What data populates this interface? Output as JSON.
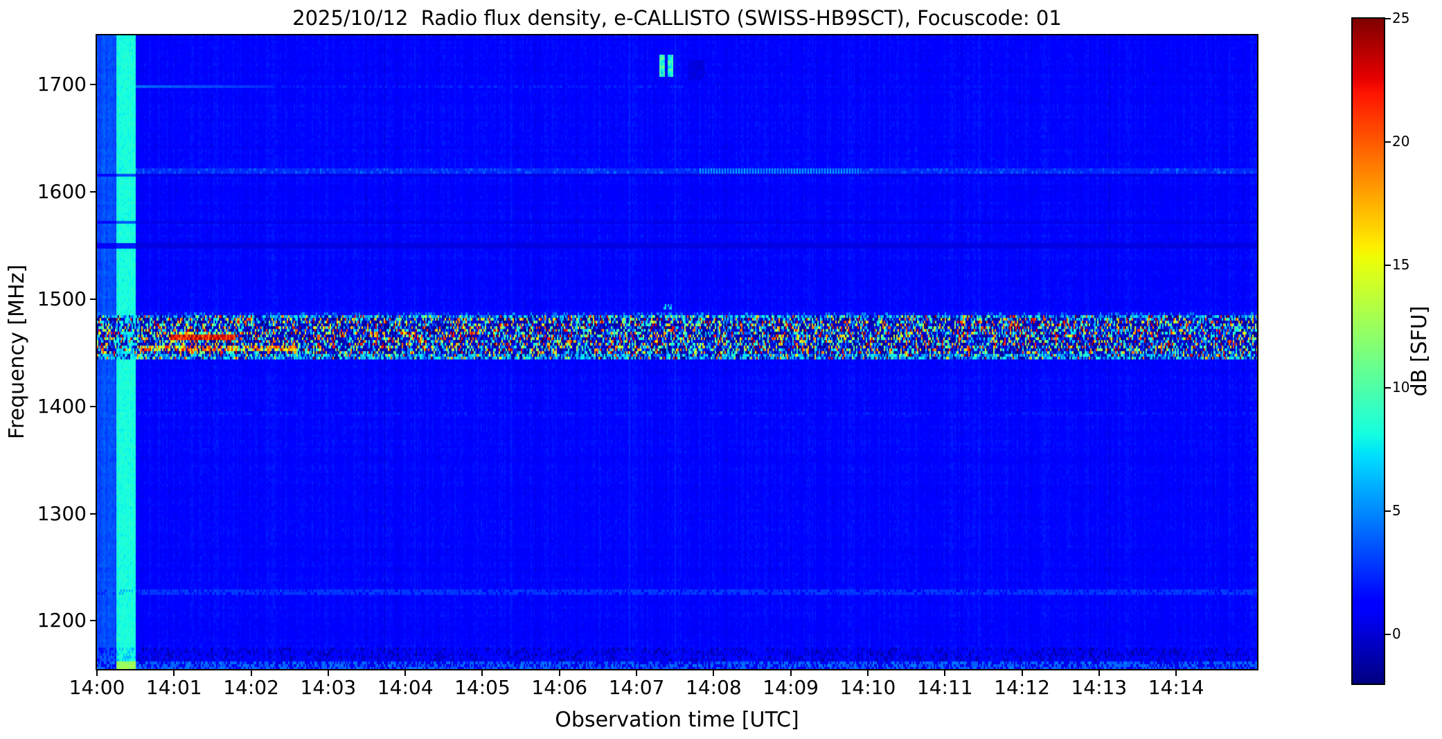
{
  "title": "2025/10/12  Radio flux density, e-CALLISTO (SWISS-HB9SCT), Focuscode: 01",
  "axes": {
    "xlabel": "Observation time [UTC]",
    "ylabel": "Frequency [MHz]",
    "x_ticks": [
      "14:00",
      "14:01",
      "14:02",
      "14:03",
      "14:04",
      "14:05",
      "14:06",
      "14:07",
      "14:08",
      "14:09",
      "14:10",
      "14:11",
      "14:12",
      "14:13",
      "14:14"
    ],
    "y_ticks": [
      1700,
      1600,
      1500,
      1400,
      1300,
      1200
    ]
  },
  "colorbar": {
    "label": "dB [SFU]",
    "ticks": [
      25,
      20,
      15,
      10,
      5,
      0
    ],
    "vmin": -2,
    "vmax": 25,
    "colormap": "jet"
  },
  "chart_data": {
    "type": "heatmap",
    "title": "2025/10/12  Radio flux density, e-CALLISTO (SWISS-HB9SCT), Focuscode: 01",
    "xlabel": "Observation time [UTC]",
    "ylabel": "Frequency [MHz]",
    "value_label": "dB [SFU]",
    "x_start_label": "14:00",
    "x_minutes_range": [
      0,
      15.05
    ],
    "freq_mhz_range": [
      1155,
      1746
    ],
    "value_range_db": [
      -2,
      25
    ],
    "colormap": "jet",
    "background_level_db": 1.3,
    "features": {
      "startup_column": {
        "t_end_min": 0.252,
        "extra_db": 2.0
      },
      "calibration_stripe": {
        "t_min": [
          0.252,
          0.512
        ],
        "level_db": 8.3,
        "bottom_level_db": 12.5
      },
      "rfi_band": {
        "freq_mhz": [
          1445,
          1484
        ],
        "dark_fraction": 0.5,
        "dark_db": [
          -2,
          0.6
        ],
        "mid_db": [
          2,
          10
        ],
        "hot_db": [
          10,
          25
        ],
        "stripe_cyan_db": 7.5,
        "edge_fringe_db": [
          3.5,
          8.5
        ]
      },
      "red_streak": {
        "t_min": [
          0.95,
          1.8
        ],
        "freq_mhz": [
          1462,
          1467.5
        ],
        "level_db": [
          19,
          25
        ]
      },
      "red_streak_2": {
        "t_min": [
          0.55,
          2.6
        ],
        "freq_mhz": [
          1452.5,
          1457
        ],
        "level_db": [
          12,
          22
        ],
        "fraction": 0.7
      },
      "line_1698": {
        "freq_mhz": [
          1696,
          1700.5
        ],
        "bright_t_min": [
          0.3,
          2.3
        ],
        "level_db": 4.3,
        "faint_t_end_min": 7.6,
        "faint_db": 2.4
      },
      "line_1620": {
        "freq_mhz": [
          1617.5,
          1622
        ],
        "level_db": 2.5,
        "comb_t_min": [
          7.8,
          9.9
        ],
        "comb_db": 5.6
      },
      "line_1392": {
        "freq_mhz": [
          1391,
          1394
        ],
        "level_db": 2.3,
        "fraction": 0.3
      },
      "line_1226": {
        "freq_mhz": [
          1224.5,
          1228.5
        ],
        "level_db": 2.8,
        "fraction": 0.75
      },
      "dark_lines": [
        {
          "freq_mhz": [
            1613.5,
            1616.5
          ],
          "factor": 0.4
        },
        {
          "freq_mhz": [
            1570.5,
            1574.0
          ],
          "factor": 0.45
        },
        {
          "freq_mhz": [
            1547.5,
            1551.5
          ],
          "factor": 0.25
        }
      ],
      "spots_1718": {
        "t_segments_min": [
          [
            7.3,
            7.37
          ],
          [
            7.4,
            7.47
          ]
        ],
        "freq_mhz": [
          1707,
          1727
        ],
        "level_db": 9
      },
      "dark_patch_1715": {
        "t_min": [
          7.68,
          7.88
        ],
        "freq_mhz": [
          1704,
          1723
        ],
        "level_db": 0.2
      },
      "dots_1492": {
        "t_min": [
          7.33,
          7.48
        ],
        "freq_mhz": [
          1489,
          1494.5
        ],
        "level_db": 6,
        "fraction": 0.5
      },
      "band_top_fringe": {
        "freq_mhz": [
          1484,
          1488
        ],
        "level_db": [
          3,
          6
        ],
        "fraction": 0.2
      },
      "bottom_glow": {
        "freq_below_mhz": 1163,
        "level_db": 3.2,
        "bright_fraction": 0.55
      },
      "bottom_speckle": {
        "freq_mhz": [
          1163,
          1174
        ],
        "dark_fraction": 0.3
      }
    }
  }
}
